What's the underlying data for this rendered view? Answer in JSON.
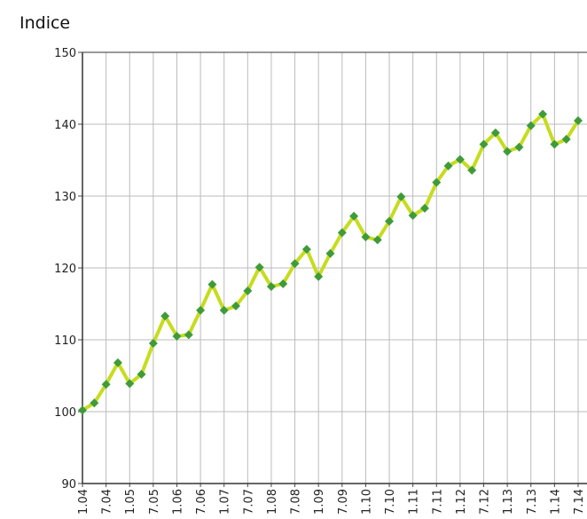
{
  "chart_data": {
    "type": "line",
    "title": "Indice",
    "categories": [
      "1.04",
      null,
      "7.04",
      null,
      "1.05",
      null,
      "7.05",
      null,
      "1.06",
      null,
      "7.06",
      null,
      "1.07",
      null,
      "7.07",
      null,
      "1.08",
      null,
      "7.08",
      null,
      "1.09",
      null,
      "7.09",
      null,
      "1.10",
      null,
      "7.10",
      null,
      "1.11",
      null,
      "7.11",
      null,
      "1.12",
      null,
      "7.12",
      null,
      "1.13",
      null,
      "7.13",
      null,
      "1.14",
      null,
      "7.14"
    ],
    "values": [
      100.2,
      101.2,
      103.8,
      106.8,
      103.9,
      105.2,
      109.5,
      113.3,
      110.5,
      110.7,
      114.1,
      117.7,
      114.1,
      114.7,
      116.8,
      120.1,
      117.4,
      117.8,
      120.6,
      122.6,
      118.8,
      122.0,
      124.9,
      127.2,
      124.3,
      123.9,
      126.5,
      129.9,
      127.3,
      128.3,
      131.9,
      134.2,
      135.1,
      133.6,
      137.2,
      138.8,
      136.2,
      136.8,
      139.8,
      141.4,
      137.2,
      137.9,
      140.5
    ],
    "color": "#c6dc1e",
    "marker_color": "#3f9b3a",
    "ylim": [
      90,
      150
    ],
    "yticks": [
      90,
      100,
      110,
      120,
      130,
      140,
      150
    ],
    "grid": true
  }
}
